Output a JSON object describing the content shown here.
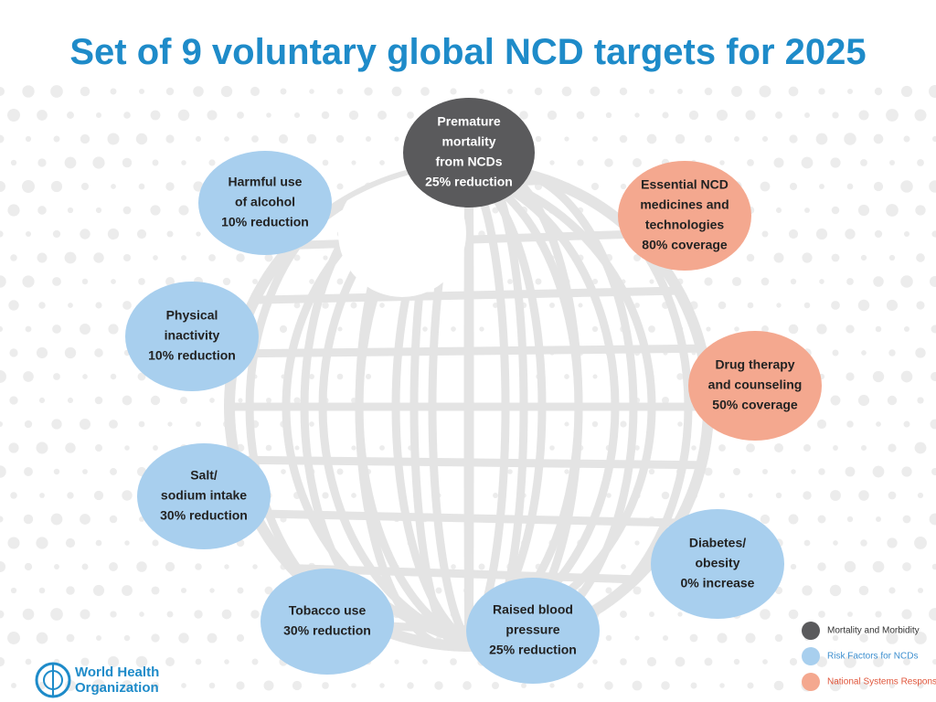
{
  "header": {
    "title": "Set of 9 voluntary global NCD targets for 2025"
  },
  "groups": [
    {
      "label": "Mortality and Morbidity",
      "color": "#5a5a5c",
      "text_color": "#333333",
      "nodes": [
        {
          "lines": [
            "Premature",
            "mortality",
            "from NCDs",
            "25% reduction"
          ]
        }
      ]
    },
    {
      "label": "Risk Factors for NCDs",
      "color": "#a8cfee",
      "text_color": "#3d8fcf",
      "nodes": [
        {
          "lines": [
            "Harmful use",
            "of alcohol",
            "10% reduction"
          ]
        },
        {
          "lines": [
            "Physical",
            "inactivity",
            "10% reduction"
          ]
        },
        {
          "lines": [
            "Salt/",
            "sodium intake",
            "30% reduction"
          ]
        },
        {
          "lines": [
            "Tobacco use",
            "30% reduction"
          ]
        },
        {
          "lines": [
            "Raised blood",
            "pressure",
            "25% reduction"
          ]
        },
        {
          "lines": [
            "Diabetes/",
            "obesity",
            "0% increase"
          ]
        }
      ]
    },
    {
      "label": "National Systems Response",
      "color": "#f4a88f",
      "text_color": "#e0553a",
      "nodes": [
        {
          "lines": [
            "Essential NCD",
            "medicines and",
            "technologies",
            "80% coverage"
          ]
        },
        {
          "lines": [
            "Drug therapy",
            "and counseling",
            "50% coverage"
          ]
        }
      ]
    }
  ],
  "logo": {
    "lines": [
      "World Health",
      "Organization"
    ]
  }
}
